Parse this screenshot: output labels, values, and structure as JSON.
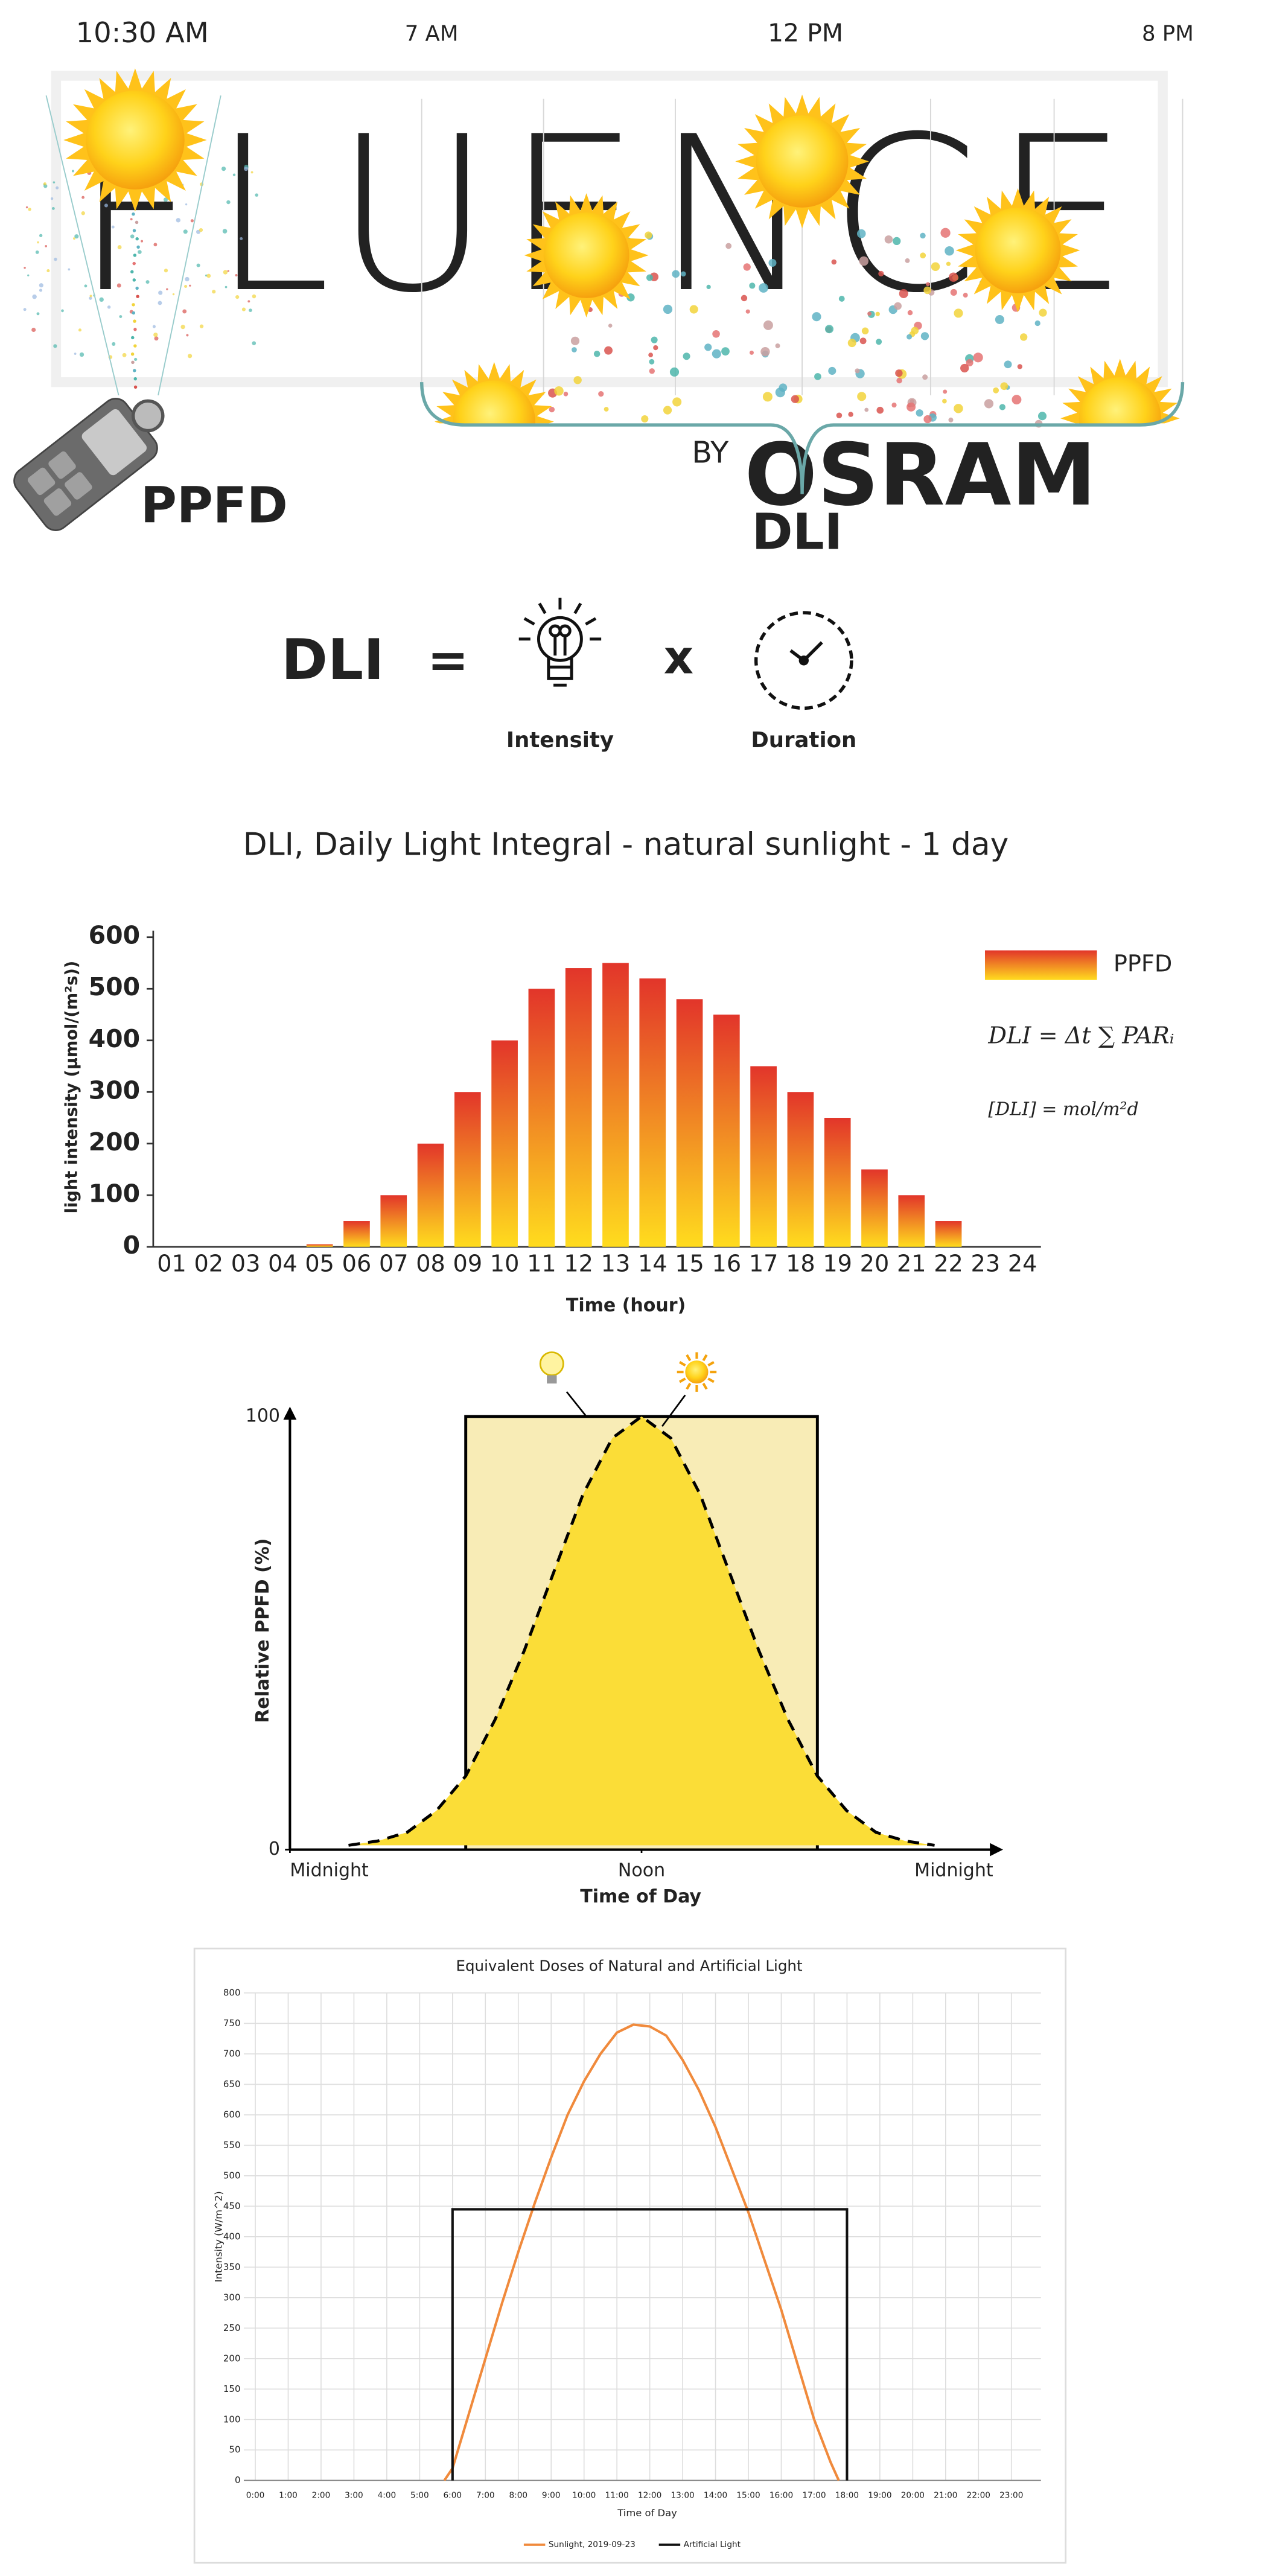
{
  "illustration": {
    "clock": "10:30 AM",
    "times": [
      "7 AM",
      "12 PM",
      "8 PM"
    ],
    "watermark": "FLUENCE",
    "watermark_by": "BY",
    "watermark_brand": "OSRAM",
    "ppfd_label": "PPFD",
    "dli_label": "DLI"
  },
  "formula": {
    "lhs": "DLI",
    "equals": "=",
    "times": "x",
    "intensity": "Intensity",
    "duration": "Duration"
  },
  "chart_data": [
    {
      "type": "bar",
      "title": "DLI, Daily Light Integral - natural sunlight - 1 day",
      "x_label": "Time (hour)",
      "y_label": "light intensity (µmol/(m²s))",
      "categories": [
        "01",
        "02",
        "03",
        "04",
        "05",
        "06",
        "07",
        "08",
        "09",
        "10",
        "11",
        "12",
        "13",
        "14",
        "15",
        "16",
        "17",
        "18",
        "19",
        "20",
        "21",
        "22",
        "23",
        "24"
      ],
      "series": [
        {
          "name": "PPFD",
          "gradient": [
            "#e2352a",
            "#ffdc1e"
          ],
          "values": [
            0,
            0,
            0,
            0,
            5,
            50,
            100,
            200,
            300,
            400,
            500,
            540,
            550,
            520,
            480,
            450,
            350,
            300,
            250,
            150,
            100,
            50,
            0,
            0
          ]
        }
      ],
      "ylim": [
        0,
        600
      ],
      "yticks": [
        0,
        100,
        200,
        300,
        400,
        500,
        600
      ],
      "annotations": [
        "DLI = Δt ∑ PARᵢ",
        "[DLI] = mol/m²d"
      ]
    },
    {
      "type": "area",
      "x_label": "Time of Day",
      "y_label": "Relative PPFD (%)",
      "xlim": [
        0,
        24
      ],
      "ylim": [
        0,
        100
      ],
      "xticks": [
        {
          "value": 0,
          "label": "Midnight"
        },
        {
          "value": 12,
          "label": "Noon"
        },
        {
          "value": 24,
          "label": "Midnight"
        }
      ],
      "yticks": [
        0,
        100
      ],
      "series": [
        {
          "color": "#f8ecb6",
          "line_color": "#000000",
          "dashed": false,
          "x": [
            6,
            6,
            18,
            18
          ],
          "values": [
            0,
            100,
            100,
            0
          ]
        },
        {
          "color": "#fbdd37",
          "line_color": "#000000",
          "dashed": true,
          "x": [
            2,
            3,
            4,
            5,
            6,
            7,
            8,
            9,
            10,
            11,
            12,
            13,
            14,
            15,
            16,
            17,
            18,
            19,
            20,
            21,
            22
          ],
          "values": [
            1,
            2,
            4,
            9,
            17,
            30,
            46,
            64,
            82,
            95,
            100,
            95,
            82,
            64,
            46,
            30,
            17,
            9,
            4,
            2,
            1
          ]
        }
      ]
    },
    {
      "type": "line",
      "title": "Equivalent Doses of Natural and Artificial Light",
      "x_label": "Time of Day",
      "y_label": "Intensity (W/m^2)",
      "xlim": [
        -0.5,
        24
      ],
      "ylim": [
        0,
        800
      ],
      "grid": true,
      "xticks": [
        {
          "value": 0,
          "label": "0:00"
        },
        {
          "value": 1,
          "label": "1:00"
        },
        {
          "value": 2,
          "label": "2:00"
        },
        {
          "value": 3,
          "label": "3:00"
        },
        {
          "value": 4,
          "label": "4:00"
        },
        {
          "value": 5,
          "label": "5:00"
        },
        {
          "value": 6,
          "label": "6:00"
        },
        {
          "value": 7,
          "label": "7:00"
        },
        {
          "value": 8,
          "label": "8:00"
        },
        {
          "value": 9,
          "label": "9:00"
        },
        {
          "value": 10,
          "label": "10:00"
        },
        {
          "value": 11,
          "label": "11:00"
        },
        {
          "value": 12,
          "label": "12:00"
        },
        {
          "value": 13,
          "label": "13:00"
        },
        {
          "value": 14,
          "label": "14:00"
        },
        {
          "value": 15,
          "label": "15:00"
        },
        {
          "value": 16,
          "label": "16:00"
        },
        {
          "value": 17,
          "label": "17:00"
        },
        {
          "value": 18,
          "label": "18:00"
        },
        {
          "value": 19,
          "label": "19:00"
        },
        {
          "value": 20,
          "label": "20:00"
        },
        {
          "value": 21,
          "label": "21:00"
        },
        {
          "value": 22,
          "label": "22:00"
        },
        {
          "value": 23,
          "label": "23:00"
        }
      ],
      "yticks": [
        0,
        50,
        100,
        150,
        200,
        250,
        300,
        350,
        400,
        450,
        500,
        550,
        600,
        650,
        700,
        750,
        800
      ],
      "series": [
        {
          "name": "Sunlight, 2019-09-23",
          "color": "#f08a3c",
          "x": [
            5.75,
            6,
            6.5,
            7,
            7.5,
            8,
            8.5,
            9,
            9.5,
            10,
            10.5,
            11,
            11.5,
            12,
            12.5,
            13,
            13.5,
            14,
            14.5,
            15,
            15.5,
            16,
            16.5,
            17,
            17.5,
            17.75
          ],
          "values": [
            0,
            20,
            110,
            200,
            290,
            375,
            455,
            530,
            600,
            655,
            700,
            735,
            748,
            745,
            730,
            690,
            640,
            580,
            510,
            440,
            360,
            280,
            190,
            100,
            30,
            0
          ]
        },
        {
          "name": "Artificial Light",
          "color": "#111111",
          "x": [
            6,
            6,
            18,
            18
          ],
          "values": [
            0,
            445,
            445,
            0
          ]
        }
      ]
    }
  ]
}
